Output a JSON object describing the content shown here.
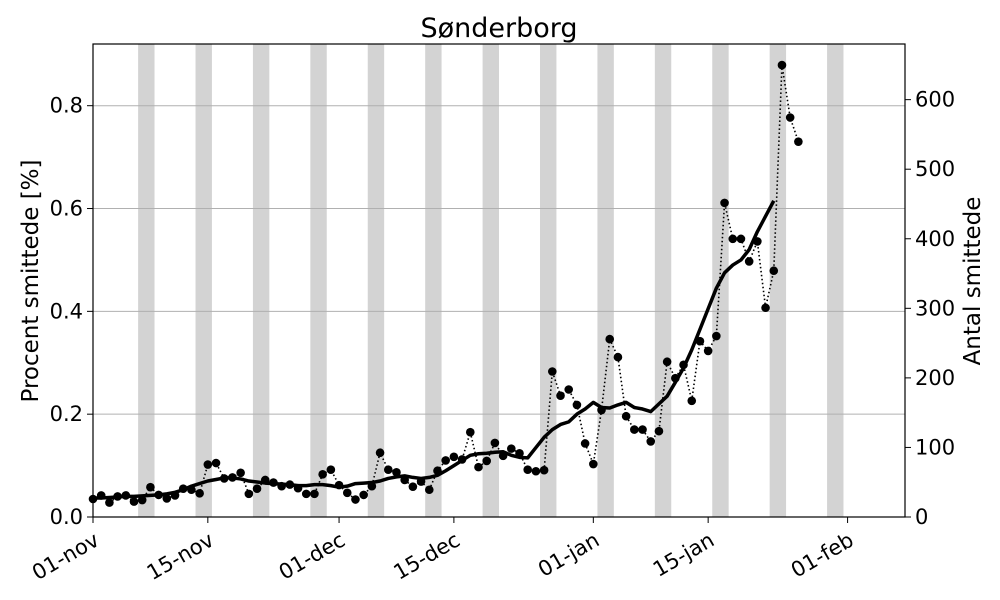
{
  "chart_data": {
    "type": "line",
    "title": "Sønderborg",
    "ylabel": "Procent smittede [%]",
    "y2label": "Antal smittede",
    "ylim": [
      0,
      0.92
    ],
    "y2lim": [
      0,
      680
    ],
    "yticks": [
      0.0,
      0.2,
      0.4,
      0.6,
      0.8
    ],
    "ytick_labels": [
      "0.0",
      "0.2",
      "0.4",
      "0.6",
      "0.8"
    ],
    "y2ticks": [
      0,
      100,
      200,
      300,
      400,
      500,
      600
    ],
    "y2tick_labels": [
      "0",
      "100",
      "200",
      "300",
      "400",
      "500",
      "600"
    ],
    "xlim": [
      "2020-11-01",
      "2021-02-08"
    ],
    "xticks": [
      "2020-11-01",
      "2020-11-15",
      "2020-12-01",
      "2020-12-15",
      "2021-01-01",
      "2021-01-15",
      "2021-02-01"
    ],
    "xtick_labels": [
      "01-nov",
      "15-nov",
      "01-dec",
      "15-dec",
      "01-jan",
      "15-jan",
      "01-feb"
    ],
    "grid": "horizontal",
    "weekend_shading": [
      [
        "2020-11-06",
        "2020-11-08"
      ],
      [
        "2020-11-13",
        "2020-11-15"
      ],
      [
        "2020-11-20",
        "2020-11-22"
      ],
      [
        "2020-11-27",
        "2020-11-29"
      ],
      [
        "2020-12-04",
        "2020-12-06"
      ],
      [
        "2020-12-11",
        "2020-12-13"
      ],
      [
        "2020-12-18",
        "2020-12-20"
      ],
      [
        "2020-12-25",
        "2020-12-27"
      ],
      [
        "2021-01-01",
        "2021-01-03"
      ],
      [
        "2021-01-08",
        "2021-01-10"
      ],
      [
        "2021-01-15",
        "2021-01-17"
      ],
      [
        "2021-01-22",
        "2021-01-24"
      ],
      [
        "2021-01-29",
        "2021-01-31"
      ]
    ],
    "colors": {
      "series": "#000000",
      "weekend": "#d3d3d3",
      "grid": "#b0b0b0"
    },
    "series": [
      {
        "style": "dotted-markers",
        "start": "2020-11-01",
        "values": [
          0.035,
          0.042,
          0.028,
          0.04,
          0.042,
          0.03,
          0.033,
          0.058,
          0.043,
          0.036,
          0.042,
          0.055,
          0.053,
          0.046,
          0.102,
          0.105,
          0.075,
          0.077,
          0.086,
          0.045,
          0.055,
          0.072,
          0.067,
          0.06,
          0.063,
          0.056,
          0.045,
          0.045,
          0.083,
          0.092,
          0.062,
          0.047,
          0.034,
          0.043,
          0.06,
          0.125,
          0.092,
          0.087,
          0.072,
          0.059,
          0.069,
          0.053,
          0.09,
          0.11,
          0.117,
          0.112,
          0.165,
          0.097,
          0.109,
          0.144,
          0.119,
          0.133,
          0.124,
          0.092,
          0.089,
          0.091,
          0.283,
          0.236,
          0.248,
          0.218,
          0.143,
          0.103,
          0.208,
          0.346,
          0.311,
          0.196,
          0.17,
          0.17,
          0.147,
          0.167,
          0.302,
          0.27,
          0.296,
          0.226,
          0.342,
          0.323,
          0.352,
          0.611,
          0.541,
          0.541,
          0.497,
          0.536,
          0.407,
          0.479,
          0.879,
          0.777,
          0.73
        ]
      },
      {
        "style": "thick-line",
        "start": "2020-11-01",
        "values": [
          0.037,
          0.037,
          0.038,
          0.039,
          0.04,
          0.04,
          0.041,
          0.042,
          0.043,
          0.045,
          0.048,
          0.053,
          0.06,
          0.065,
          0.07,
          0.073,
          0.076,
          0.076,
          0.074,
          0.07,
          0.068,
          0.066,
          0.065,
          0.064,
          0.063,
          0.061,
          0.061,
          0.063,
          0.063,
          0.061,
          0.058,
          0.06,
          0.065,
          0.066,
          0.067,
          0.07,
          0.075,
          0.078,
          0.08,
          0.077,
          0.075,
          0.077,
          0.081,
          0.09,
          0.1,
          0.11,
          0.12,
          0.123,
          0.124,
          0.126,
          0.127,
          0.12,
          0.116,
          0.115,
          0.135,
          0.155,
          0.17,
          0.18,
          0.185,
          0.2,
          0.21,
          0.223,
          0.213,
          0.212,
          0.218,
          0.223,
          0.213,
          0.21,
          0.205,
          0.22,
          0.235,
          0.262,
          0.29,
          0.325,
          0.365,
          0.405,
          0.445,
          0.475,
          0.49,
          0.5,
          0.52,
          0.555,
          0.585,
          0.615
        ]
      }
    ]
  }
}
